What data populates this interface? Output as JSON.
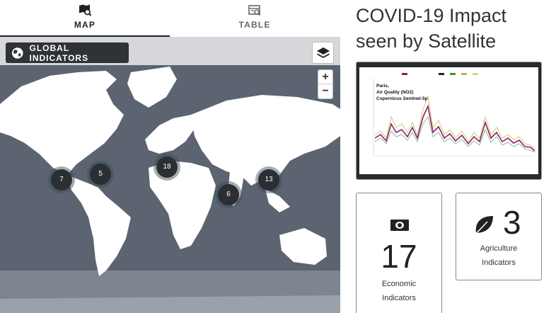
{
  "tabs": {
    "map_label": "MAP",
    "table_label": "TABLE"
  },
  "map": {
    "global_indicators_label": "GLOBAL INDICATORS",
    "zoom_in": "+",
    "zoom_out": "−",
    "clusters": [
      {
        "count": "7"
      },
      {
        "count": "5"
      },
      {
        "count": "18"
      },
      {
        "count": "6"
      },
      {
        "count": "13"
      }
    ]
  },
  "panel": {
    "title": "COVID-19 Impact seen by Satellite",
    "chart_caption_line1": "Paris,",
    "chart_caption_line2": "Air Quality (NO2)",
    "chart_caption_line3": "Copernicus Sentinel-5p",
    "economic": {
      "count": "17",
      "label_line1": "Economic",
      "label_line2": "Indicators"
    },
    "agriculture": {
      "count": "3",
      "label_line1": "Agriculture",
      "label_line2": "Indicators"
    }
  },
  "colors": {
    "ocean": "#5b6470",
    "land": "#ffffff",
    "cluster": "#2b2e33",
    "chart_line": "#8b1f6e"
  }
}
